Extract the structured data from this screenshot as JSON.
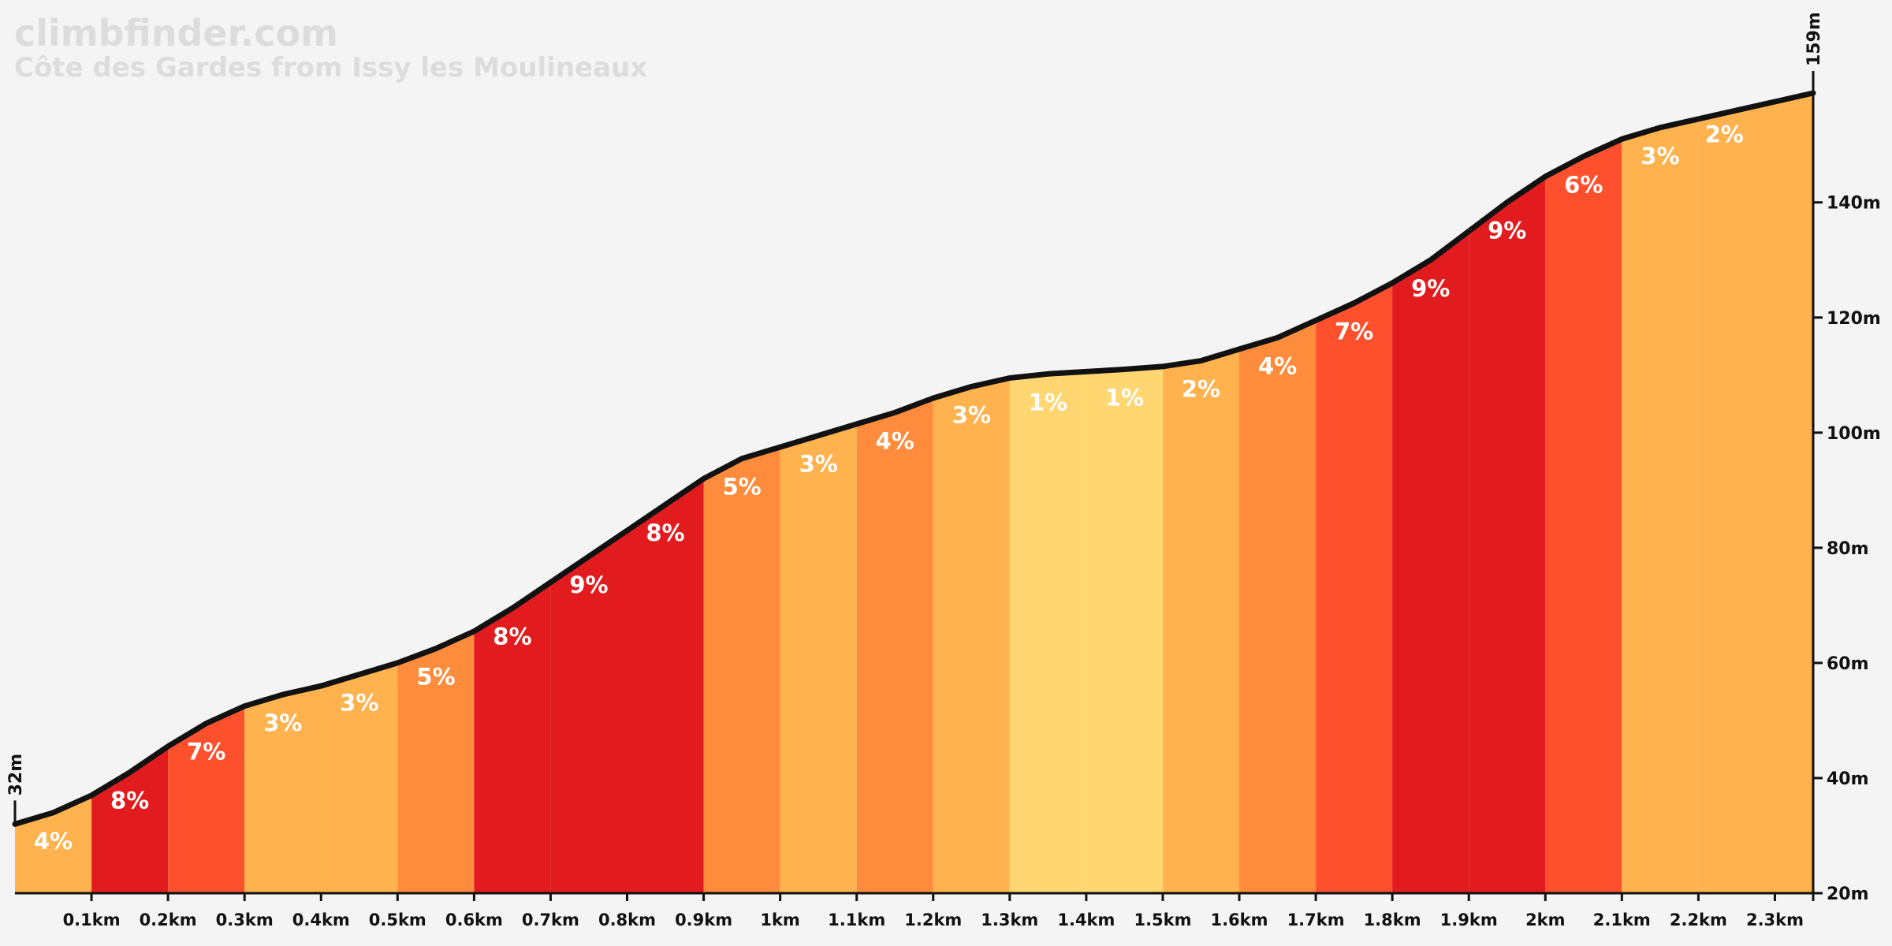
{
  "header": {
    "site": "climbfinder.com",
    "climb_name": "Côte des Gardes from Issy les Moulineaux"
  },
  "chart_data": {
    "type": "area",
    "x_unit": "km",
    "y_unit": "m",
    "ylim": [
      20,
      159
    ],
    "xlim": [
      0,
      2.35
    ],
    "start_elevation_label": "32m",
    "end_elevation_label": "159m",
    "x_ticks": [
      {
        "value": 0.1,
        "label": "0.1km"
      },
      {
        "value": 0.2,
        "label": "0.2km"
      },
      {
        "value": 0.3,
        "label": "0.3km"
      },
      {
        "value": 0.4,
        "label": "0.4km"
      },
      {
        "value": 0.5,
        "label": "0.5km"
      },
      {
        "value": 0.6,
        "label": "0.6km"
      },
      {
        "value": 0.7,
        "label": "0.7km"
      },
      {
        "value": 0.8,
        "label": "0.8km"
      },
      {
        "value": 0.9,
        "label": "0.9km"
      },
      {
        "value": 1.0,
        "label": "1km"
      },
      {
        "value": 1.1,
        "label": "1.1km"
      },
      {
        "value": 1.2,
        "label": "1.2km"
      },
      {
        "value": 1.3,
        "label": "1.3km"
      },
      {
        "value": 1.4,
        "label": "1.4km"
      },
      {
        "value": 1.5,
        "label": "1.5km"
      },
      {
        "value": 1.6,
        "label": "1.6km"
      },
      {
        "value": 1.7,
        "label": "1.7km"
      },
      {
        "value": 1.8,
        "label": "1.8km"
      },
      {
        "value": 1.9,
        "label": "1.9km"
      },
      {
        "value": 2.0,
        "label": "2km"
      },
      {
        "value": 2.1,
        "label": "2.1km"
      },
      {
        "value": 2.2,
        "label": "2.2km"
      },
      {
        "value": 2.3,
        "label": "2.3km"
      }
    ],
    "y_ticks": [
      {
        "value": 20,
        "label": "20m"
      },
      {
        "value": 40,
        "label": "40m"
      },
      {
        "value": 60,
        "label": "60m"
      },
      {
        "value": 80,
        "label": "80m"
      },
      {
        "value": 100,
        "label": "100m"
      },
      {
        "value": 120,
        "label": "120m"
      },
      {
        "value": 140,
        "label": "140m"
      }
    ],
    "segments": [
      {
        "start": 0.0,
        "end": 0.1,
        "label": "4%",
        "color": "#ffb24d"
      },
      {
        "start": 0.1,
        "end": 0.2,
        "label": "8%",
        "color": "#e21c1e"
      },
      {
        "start": 0.2,
        "end": 0.3,
        "label": "7%",
        "color": "#ff502d"
      },
      {
        "start": 0.3,
        "end": 0.4,
        "label": "3%",
        "color": "#ffb24d"
      },
      {
        "start": 0.4,
        "end": 0.5,
        "label": "3%",
        "color": "#ffb24d"
      },
      {
        "start": 0.5,
        "end": 0.6,
        "label": "5%",
        "color": "#ff8c3c"
      },
      {
        "start": 0.6,
        "end": 0.7,
        "label": "8%",
        "color": "#e21c1e"
      },
      {
        "start": 0.7,
        "end": 0.8,
        "label": "9%",
        "color": "#e21c1e"
      },
      {
        "start": 0.8,
        "end": 0.9,
        "label": "8%",
        "color": "#e21c1e"
      },
      {
        "start": 0.9,
        "end": 1.0,
        "label": "5%",
        "color": "#ff8c3c"
      },
      {
        "start": 1.0,
        "end": 1.1,
        "label": "3%",
        "color": "#ffb24d"
      },
      {
        "start": 1.1,
        "end": 1.2,
        "label": "4%",
        "color": "#ff8c3c"
      },
      {
        "start": 1.2,
        "end": 1.3,
        "label": "3%",
        "color": "#ffb24d"
      },
      {
        "start": 1.3,
        "end": 1.4,
        "label": "1%",
        "color": "#ffd671"
      },
      {
        "start": 1.4,
        "end": 1.5,
        "label": "1%",
        "color": "#ffd671"
      },
      {
        "start": 1.5,
        "end": 1.6,
        "label": "2%",
        "color": "#ffb24d"
      },
      {
        "start": 1.6,
        "end": 1.7,
        "label": "4%",
        "color": "#ff8c3c"
      },
      {
        "start": 1.7,
        "end": 1.8,
        "label": "7%",
        "color": "#ff502d"
      },
      {
        "start": 1.8,
        "end": 1.9,
        "label": "9%",
        "color": "#e21c1e"
      },
      {
        "start": 1.9,
        "end": 2.0,
        "label": "9%",
        "color": "#e21c1e"
      },
      {
        "start": 2.0,
        "end": 2.1,
        "label": "6%",
        "color": "#ff502d"
      },
      {
        "start": 2.1,
        "end": 2.2,
        "label": "3%",
        "color": "#ffb24d"
      },
      {
        "start": 2.2,
        "end": 2.35,
        "label": "2%",
        "color": "#ffb24d"
      }
    ],
    "profile": [
      [
        0.0,
        32
      ],
      [
        0.05,
        34
      ],
      [
        0.1,
        37
      ],
      [
        0.15,
        41
      ],
      [
        0.2,
        45.5
      ],
      [
        0.25,
        49.5
      ],
      [
        0.3,
        52.5
      ],
      [
        0.35,
        54.5
      ],
      [
        0.4,
        56
      ],
      [
        0.45,
        58
      ],
      [
        0.5,
        60
      ],
      [
        0.55,
        62.5
      ],
      [
        0.6,
        65.5
      ],
      [
        0.65,
        69.5
      ],
      [
        0.7,
        74
      ],
      [
        0.75,
        78.5
      ],
      [
        0.8,
        83
      ],
      [
        0.85,
        87.5
      ],
      [
        0.9,
        92
      ],
      [
        0.95,
        95.5
      ],
      [
        1.0,
        97.5
      ],
      [
        1.05,
        99.5
      ],
      [
        1.1,
        101.5
      ],
      [
        1.15,
        103.5
      ],
      [
        1.2,
        106
      ],
      [
        1.25,
        108
      ],
      [
        1.3,
        109.5
      ],
      [
        1.35,
        110.2
      ],
      [
        1.4,
        110.6
      ],
      [
        1.45,
        111
      ],
      [
        1.5,
        111.5
      ],
      [
        1.55,
        112.5
      ],
      [
        1.6,
        114.5
      ],
      [
        1.65,
        116.5
      ],
      [
        1.7,
        119.5
      ],
      [
        1.75,
        122.5
      ],
      [
        1.8,
        126
      ],
      [
        1.85,
        130
      ],
      [
        1.9,
        135
      ],
      [
        1.95,
        140
      ],
      [
        2.0,
        144.5
      ],
      [
        2.05,
        148
      ],
      [
        2.1,
        151
      ],
      [
        2.15,
        153
      ],
      [
        2.2,
        154.5
      ],
      [
        2.25,
        156
      ],
      [
        2.3,
        157.5
      ],
      [
        2.35,
        159
      ]
    ]
  }
}
